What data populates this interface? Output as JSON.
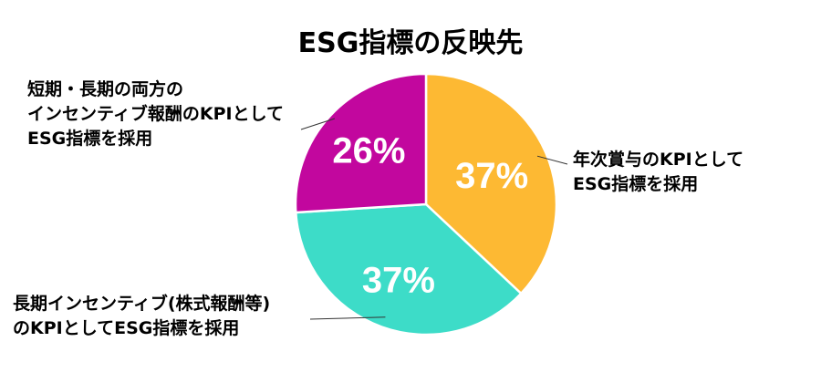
{
  "chart_data": {
    "type": "pie",
    "title": "ESG指標の反映先",
    "slices": [
      {
        "label_lines": [
          "年次賞与のKPIとして",
          "ESG指標を採用"
        ],
        "value": 37,
        "display": "37%",
        "color": "#FDB933"
      },
      {
        "label_lines": [
          "長期インセンティブ(株式報酬等)",
          "のKPIとしてESG指標を採用"
        ],
        "value": 37,
        "display": "37%",
        "color": "#3DDCC8"
      },
      {
        "label_lines": [
          "短期・長期の両方の",
          "インセンティブ報酬のKPIとして",
          "ESG指標を採用"
        ],
        "value": 26,
        "display": "26%",
        "color": "#C2079E"
      }
    ],
    "start_angle": "12 o'clock",
    "direction": "clockwise"
  }
}
